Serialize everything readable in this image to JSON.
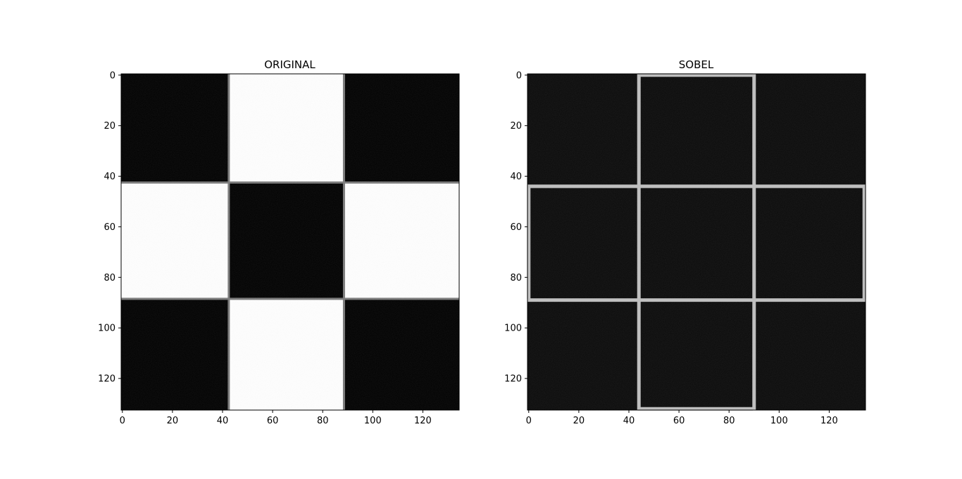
{
  "chart_data": [
    {
      "type": "heatmap",
      "title": "ORIGINAL",
      "colormap": "gray",
      "xlim": [
        0,
        135
      ],
      "ylim": [
        0,
        133
      ],
      "y_inverted": true,
      "xticks": [
        0,
        20,
        40,
        60,
        80,
        100,
        120
      ],
      "yticks": [
        0,
        20,
        40,
        60,
        80,
        100,
        120
      ],
      "grid": false,
      "cells": [
        {
          "x": [
            0,
            43
          ],
          "y": [
            0,
            43
          ],
          "value": 0
        },
        {
          "x": [
            43,
            89
          ],
          "y": [
            0,
            43
          ],
          "value": 1
        },
        {
          "x": [
            89,
            135
          ],
          "y": [
            0,
            43
          ],
          "value": 0
        },
        {
          "x": [
            0,
            43
          ],
          "y": [
            43,
            89
          ],
          "value": 1
        },
        {
          "x": [
            43,
            89
          ],
          "y": [
            43,
            89
          ],
          "value": 0
        },
        {
          "x": [
            89,
            135
          ],
          "y": [
            43,
            89
          ],
          "value": 1
        },
        {
          "x": [
            0,
            43
          ],
          "y": [
            89,
            133
          ],
          "value": 0
        },
        {
          "x": [
            43,
            89
          ],
          "y": [
            89,
            133
          ],
          "value": 1
        },
        {
          "x": [
            89,
            135
          ],
          "y": [
            89,
            133
          ],
          "value": 0
        }
      ]
    },
    {
      "type": "heatmap",
      "title": "SOBEL",
      "colormap": "gray",
      "xlim": [
        0,
        135
      ],
      "ylim": [
        0,
        133
      ],
      "y_inverted": true,
      "xticks": [
        0,
        20,
        40,
        60,
        80,
        100,
        120
      ],
      "yticks": [
        0,
        20,
        40,
        60,
        80,
        100,
        120
      ],
      "grid": false,
      "edge_intensity": 0.75,
      "edges": {
        "vertical": [
          {
            "x": 0.5,
            "y": [
              44,
              89
            ]
          },
          {
            "x": 44.5,
            "y": [
              0,
              133
            ]
          },
          {
            "x": 90.5,
            "y": [
              0,
              133
            ]
          },
          {
            "x": 134.5,
            "y": [
              44,
              89
            ]
          }
        ],
        "horizontal": [
          {
            "y": 0.5,
            "x": [
              44,
              90
            ]
          },
          {
            "y": 44.5,
            "x": [
              0,
              135
            ]
          },
          {
            "y": 89.5,
            "x": [
              0,
              135
            ]
          },
          {
            "y": 132.5,
            "x": [
              44,
              90
            ]
          }
        ]
      }
    }
  ]
}
